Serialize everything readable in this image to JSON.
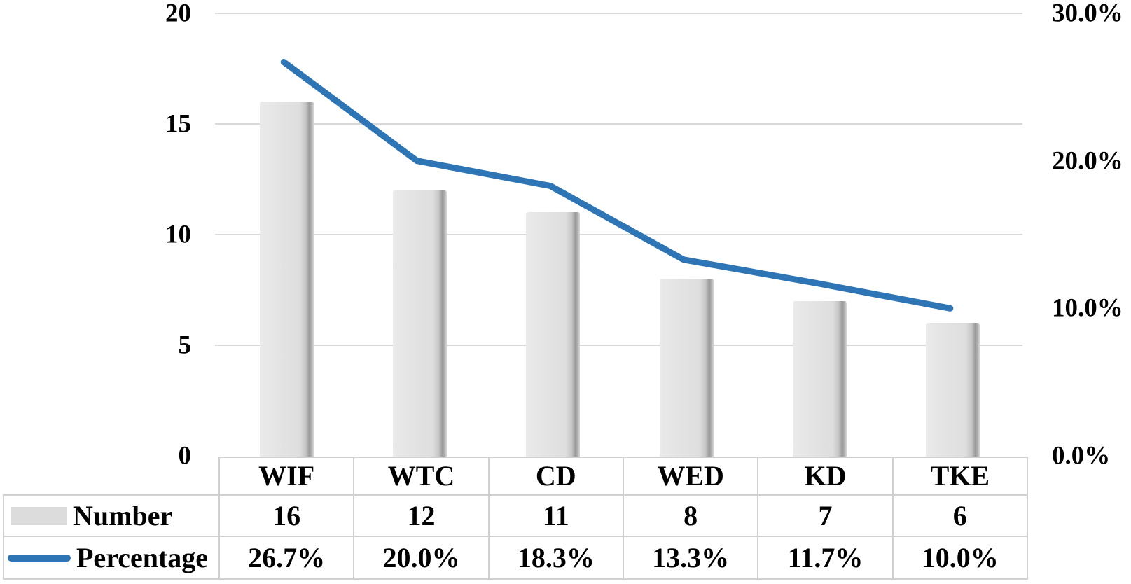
{
  "chart_data": {
    "type": "combo-bar-line",
    "title": "",
    "categories": [
      "WIF",
      "WTC",
      "CD",
      "WED",
      "KD",
      "TKE"
    ],
    "series": [
      {
        "name": "Number",
        "type": "bar",
        "axis": "left",
        "values": [
          16,
          12,
          11,
          8,
          7,
          6
        ],
        "value_labels": [
          "16",
          "12",
          "11",
          "8",
          "7",
          "6"
        ],
        "color": "#dcdcdc"
      },
      {
        "name": "Percentage",
        "type": "line",
        "axis": "right",
        "values": [
          26.7,
          20.0,
          18.3,
          13.3,
          11.7,
          10.0
        ],
        "value_labels": [
          "26.7%",
          "20.0%",
          "18.3%",
          "13.3%",
          "11.7%",
          "10.0%"
        ],
        "color": "#2e75b6"
      }
    ],
    "left_axis": {
      "min": 0,
      "max": 20,
      "tick_step": 5,
      "tick_labels": [
        "20",
        "15",
        "10",
        "5",
        "0"
      ],
      "tick_values": [
        20,
        15,
        10,
        5,
        0
      ]
    },
    "right_axis": {
      "min": 0,
      "max": 30,
      "tick_step": 10,
      "tick_labels": [
        "30.0%",
        "20.0%",
        "10.0%",
        "0.0%"
      ],
      "tick_values": [
        30,
        20,
        10,
        0
      ]
    },
    "grid": true,
    "legend_position": "data-table-left",
    "colors": {
      "line": "#2e75b6",
      "bar_fill": "#dcdcdc",
      "bar_shadow": "#989898",
      "gridline": "#d9d9d9",
      "table_border": "#d0d0d0",
      "text": "#000000"
    }
  }
}
